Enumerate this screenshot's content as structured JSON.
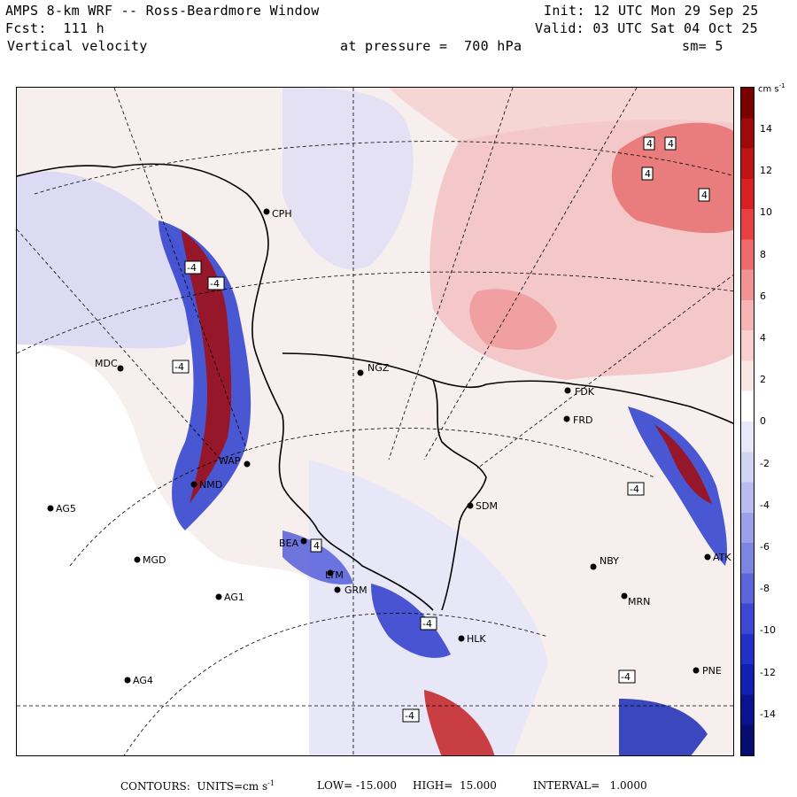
{
  "header": {
    "line1_left": "AMPS 8-km WRF -- Ross-Beardmore Window",
    "line2_left": "Fcst:  111 h",
    "line3_left": "Vertical velocity",
    "line1_right": "Init: 12 UTC Mon 29 Sep 25",
    "line2_right": "Valid: 03 UTC Sat 04 Oct 25",
    "pressure": "at pressure =  700 hPa",
    "smoothing": "sm= 5"
  },
  "colorbar": {
    "unit": "cm s",
    "unit_exp": "-1",
    "ticks": [
      "14",
      "12",
      "10",
      "8",
      "6",
      "4",
      "2",
      "0",
      "-2",
      "-4",
      "-6",
      "-8",
      "-10",
      "-12",
      "-14"
    ],
    "colors_top_to_bottom": [
      "#7a0000",
      "#9e0a0a",
      "#c01414",
      "#d92020",
      "#e84040",
      "#ef6a6a",
      "#f39292",
      "#f6b4b4",
      "#f8d0d0",
      "#fbe6e6",
      "#ffffff",
      "#e8e8f8",
      "#d2d4f4",
      "#b8bcef",
      "#9aa0ea",
      "#7c84e4",
      "#5c66dc",
      "#3c48d4",
      "#2030c8",
      "#1020b0",
      "#0a1490",
      "#060c70"
    ]
  },
  "stations": [
    {
      "code": "CPH"
    },
    {
      "code": "MDC"
    },
    {
      "code": "NGZ"
    },
    {
      "code": "FDK"
    },
    {
      "code": "FRD"
    },
    {
      "code": "WAP"
    },
    {
      "code": "NMD"
    },
    {
      "code": "AG5"
    },
    {
      "code": "SDM"
    },
    {
      "code": "MGD"
    },
    {
      "code": "BEA"
    },
    {
      "code": "LTM"
    },
    {
      "code": "GRM"
    },
    {
      "code": "HLK"
    },
    {
      "code": "AG1"
    },
    {
      "code": "NBY"
    },
    {
      "code": "MRN"
    },
    {
      "code": "ATK"
    },
    {
      "code": "AG4"
    },
    {
      "code": "PNE"
    }
  ],
  "contour_labels": [
    "4",
    "4",
    "4",
    "4",
    "-4",
    "-4",
    "-4",
    "-4",
    "4",
    "-4",
    "-4",
    "-4"
  ],
  "footer": {
    "contours": "CONTOURS:  UNITS=cm s",
    "units_exp": "-1",
    "low": "LOW= -15.000",
    "high": "HIGH=  15.000",
    "interval": "INTERVAL=   1.0000"
  }
}
